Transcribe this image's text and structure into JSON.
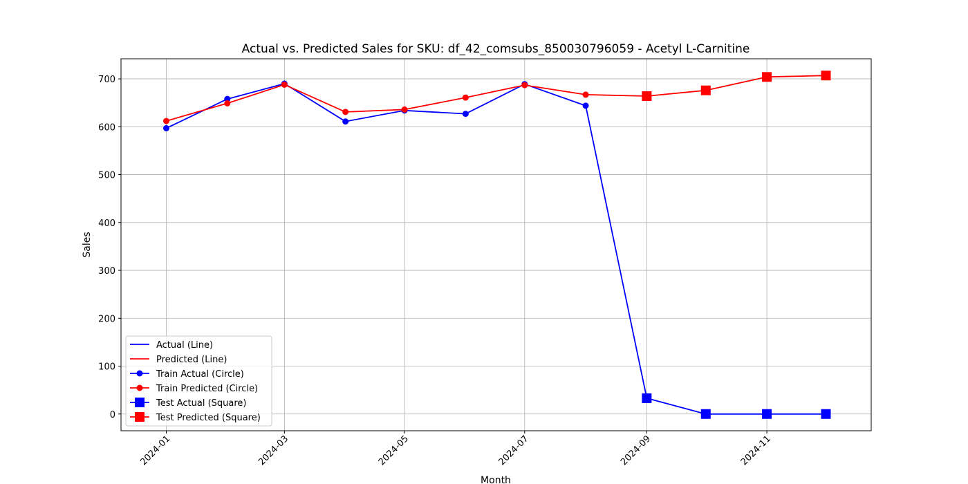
{
  "chart_data": {
    "type": "line",
    "title": "Actual vs. Predicted Sales for SKU: df_42_comsubs_850030796059 - Acetyl L-Carnitine",
    "xlabel": "Month",
    "ylabel": "Sales",
    "x_range": [
      "2023-12-09",
      "2024-12-24"
    ],
    "ylim": [
      -35,
      742
    ],
    "yticks": [
      0,
      100,
      200,
      300,
      400,
      500,
      600,
      700
    ],
    "xticks": [
      "2024-01",
      "2024-03",
      "2024-05",
      "2024-07",
      "2024-09",
      "2024-11"
    ],
    "grid": true,
    "legend_position": "lower-left",
    "legend": [
      "Actual (Line)",
      "Predicted (Line)",
      "Train Actual (Circle)",
      "Train Predicted (Circle)",
      "Test Actual (Square)",
      "Test Predicted (Square)"
    ],
    "series": [
      {
        "name": "Actual",
        "color": "#0000ff",
        "points": [
          {
            "x": "2024-01-01",
            "y": 597,
            "marker": "circle"
          },
          {
            "x": "2024-02-01",
            "y": 658,
            "marker": "circle"
          },
          {
            "x": "2024-03-01",
            "y": 690,
            "marker": "circle"
          },
          {
            "x": "2024-04-01",
            "y": 611,
            "marker": "circle"
          },
          {
            "x": "2024-05-01",
            "y": 634,
            "marker": "circle"
          },
          {
            "x": "2024-06-01",
            "y": 627,
            "marker": "circle"
          },
          {
            "x": "2024-07-01",
            "y": 689,
            "marker": "circle"
          },
          {
            "x": "2024-08-01",
            "y": 644,
            "marker": "circle"
          },
          {
            "x": "2024-09-01",
            "y": 33,
            "marker": "square"
          },
          {
            "x": "2024-10-01",
            "y": 0,
            "marker": "square"
          },
          {
            "x": "2024-11-01",
            "y": 0,
            "marker": "square"
          },
          {
            "x": "2024-12-01",
            "y": 0,
            "marker": "square"
          }
        ]
      },
      {
        "name": "Predicted",
        "color": "#ff0000",
        "points": [
          {
            "x": "2024-01-01",
            "y": 612,
            "marker": "circle"
          },
          {
            "x": "2024-02-01",
            "y": 649,
            "marker": "circle"
          },
          {
            "x": "2024-03-01",
            "y": 688,
            "marker": "circle"
          },
          {
            "x": "2024-04-01",
            "y": 631,
            "marker": "circle"
          },
          {
            "x": "2024-05-01",
            "y": 636,
            "marker": "circle"
          },
          {
            "x": "2024-06-01",
            "y": 661,
            "marker": "circle"
          },
          {
            "x": "2024-07-01",
            "y": 687,
            "marker": "circle"
          },
          {
            "x": "2024-08-01",
            "y": 667,
            "marker": "circle"
          },
          {
            "x": "2024-09-01",
            "y": 664,
            "marker": "square"
          },
          {
            "x": "2024-10-01",
            "y": 676,
            "marker": "square"
          },
          {
            "x": "2024-11-01",
            "y": 704,
            "marker": "square"
          },
          {
            "x": "2024-12-01",
            "y": 707,
            "marker": "square"
          }
        ]
      }
    ]
  }
}
